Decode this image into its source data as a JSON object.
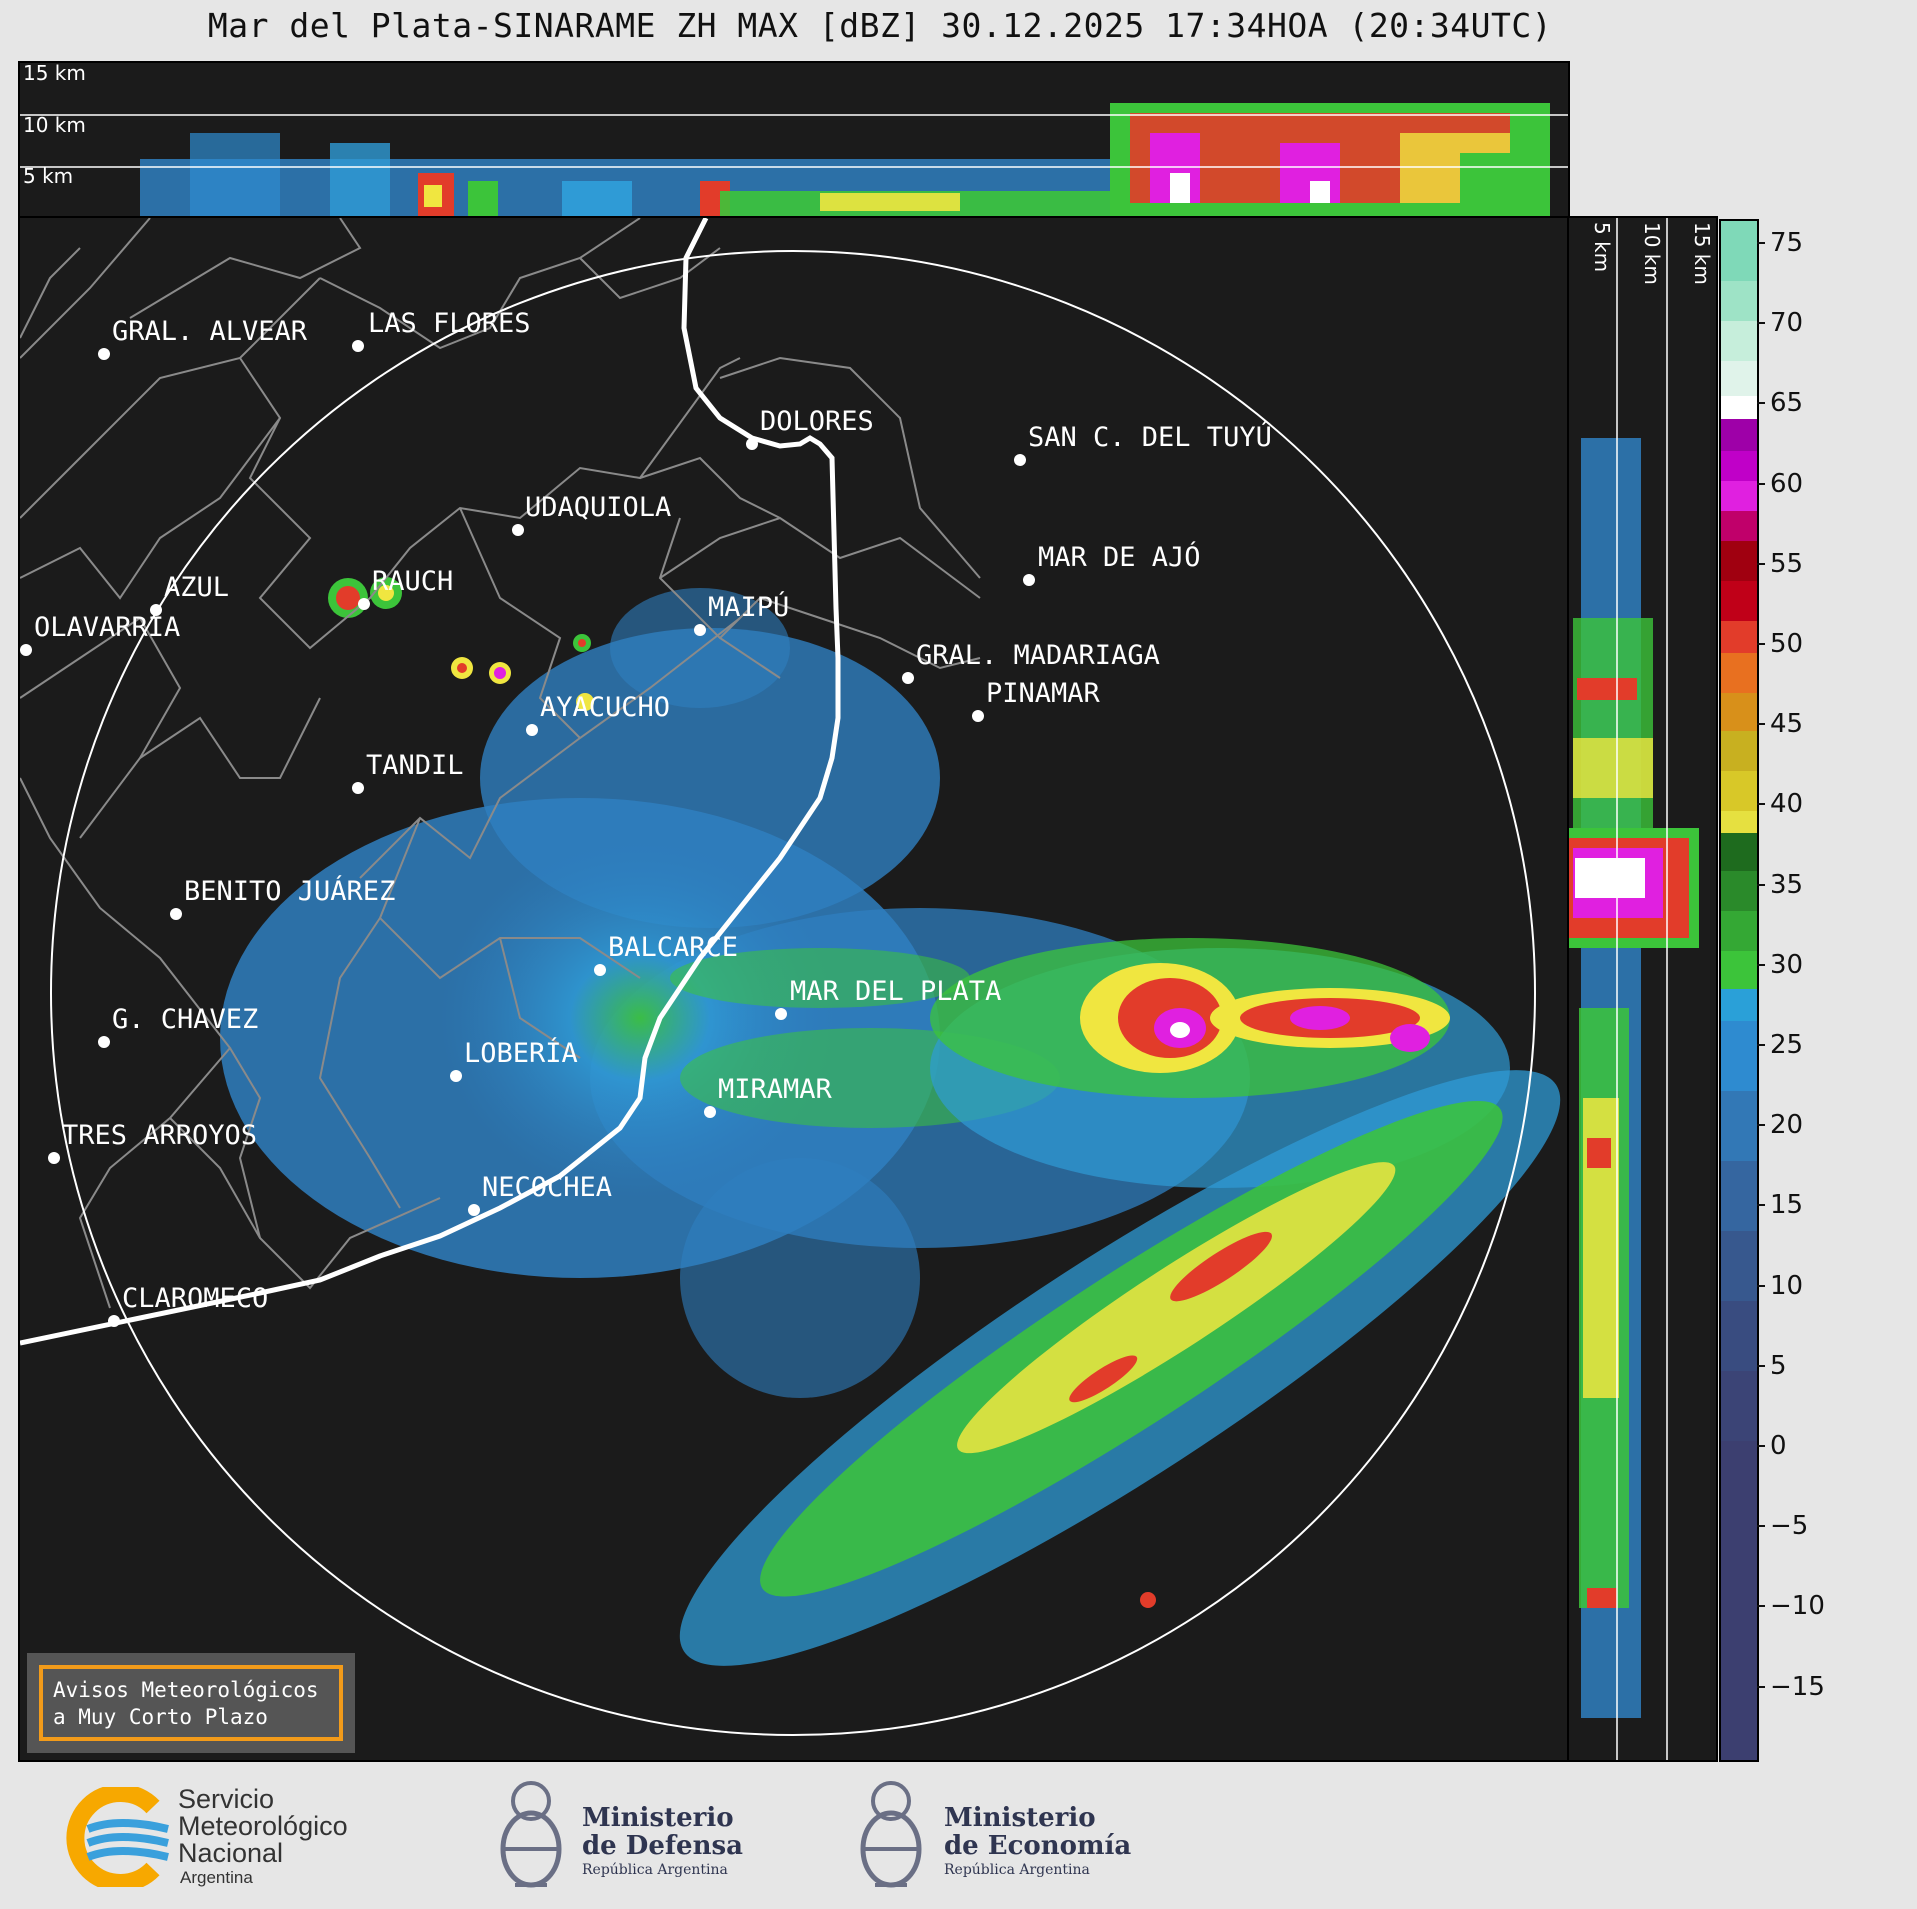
{
  "title": "Mar del Plata-SINARAME ZH MAX [dBZ] 30.12.2025 17:34HOA (20:34UTC)",
  "top_panel_labels": [
    "15 km",
    "10 km",
    "5 km"
  ],
  "side_panel_labels": [
    "5 km",
    "10 km",
    "15 km"
  ],
  "cities": [
    {
      "name": "GRAL. ALVEAR"
    },
    {
      "name": "LAS FLORES"
    },
    {
      "name": "DOLORES"
    },
    {
      "name": "SAN C. DEL TUYÚ"
    },
    {
      "name": "UDAQUIOLA"
    },
    {
      "name": "MAR DE AJÓ"
    },
    {
      "name": "AZUL"
    },
    {
      "name": "RAUCH"
    },
    {
      "name": "OLAVARRÍA"
    },
    {
      "name": "MAIPÚ"
    },
    {
      "name": "GRAL. MADARIAGA"
    },
    {
      "name": "PINAMAR"
    },
    {
      "name": "AYACUCHO"
    },
    {
      "name": "TANDIL"
    },
    {
      "name": "BENITO JUÁREZ"
    },
    {
      "name": "BALCARCE"
    },
    {
      "name": "MAR DEL PLATA"
    },
    {
      "name": "G. CHAVEZ"
    },
    {
      "name": "LOBERÍA"
    },
    {
      "name": "MIRAMAR"
    },
    {
      "name": "TRES ARROYOS"
    },
    {
      "name": "NECOCHEA"
    },
    {
      "name": "CLAROMECO"
    }
  ],
  "colorbar": {
    "ticks": [
      "75",
      "70",
      "65",
      "60",
      "55",
      "50",
      "45",
      "40",
      "35",
      "30",
      "25",
      "20",
      "15",
      "10",
      "5",
      "0",
      "−5",
      "−10",
      "−15"
    ],
    "colors": {
      "very_low": "#3b3f70",
      "low": "#3d6fa7",
      "light": "#2f9bd6",
      "moderate": "#3cc43a",
      "strong": "#f0e640",
      "heavy": "#e23c2a",
      "intense": "#e020e0",
      "extreme": "#ffffff",
      "max": "#7fe0c0"
    }
  },
  "badge": {
    "line1": "Avisos Meteorológicos",
    "line2": "a Muy Corto Plazo"
  },
  "logos": {
    "smn": {
      "line1": "Servicio",
      "line2": "Meteorológico",
      "line3": "Nacional",
      "line4": "Argentina"
    },
    "defensa": {
      "line1": "Ministerio",
      "line2": "de Defensa",
      "line3": "República Argentina"
    },
    "economia": {
      "line1": "Ministerio",
      "line2": "de Economía",
      "line3": "República Argentina"
    }
  }
}
